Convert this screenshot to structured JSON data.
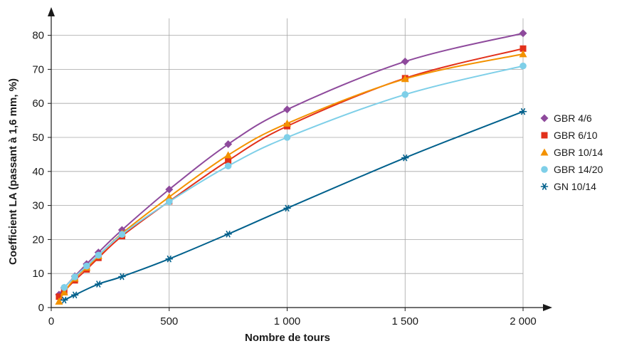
{
  "chart_data": {
    "type": "line",
    "title": "",
    "xlabel": "Nombre de tours",
    "ylabel": "Coefficient LA (passant à 1,6 mm, %)",
    "xlim": [
      0,
      2000
    ],
    "ylim": [
      0,
      85
    ],
    "x_ticks": [
      0,
      500,
      1000,
      1500,
      2000
    ],
    "x_tick_labels": [
      "0",
      "500",
      "1 000",
      "1 500",
      "2 000"
    ],
    "y_ticks": [
      0,
      10,
      20,
      30,
      40,
      50,
      60,
      70,
      80
    ],
    "y_tick_labels": [
      "0",
      "10",
      "20",
      "30",
      "40",
      "50",
      "60",
      "70",
      "80"
    ],
    "grid": true,
    "legend_position": "right",
    "series": [
      {
        "name": "GBR 4/6",
        "color": "#8e4a9c",
        "marker": "diamond",
        "x": [
          33,
          55,
          100,
          150,
          200,
          300,
          500,
          750,
          1000,
          1500,
          2000
        ],
        "y": [
          3.8,
          5.8,
          9.2,
          12.8,
          16.2,
          22.8,
          34.7,
          48.0,
          58.2,
          72.3,
          80.6
        ]
      },
      {
        "name": "GBR 6/10",
        "color": "#e2301a",
        "marker": "square",
        "x": [
          33,
          55,
          100,
          150,
          200,
          300,
          500,
          750,
          1000,
          1500,
          2000
        ],
        "y": [
          3.2,
          4.8,
          8.0,
          11.2,
          14.6,
          21.0,
          31.2,
          43.2,
          53.3,
          67.4,
          76.1
        ]
      },
      {
        "name": "GBR 10/14",
        "color": "#f39200",
        "marker": "triangle",
        "x": [
          33,
          55,
          100,
          150,
          200,
          300,
          500,
          750,
          1000,
          1500,
          2000
        ],
        "y": [
          1.8,
          4.5,
          8.6,
          11.8,
          15.2,
          21.8,
          32.5,
          44.8,
          54.1,
          67.2,
          74.5
        ]
      },
      {
        "name": "GBR 14/20",
        "color": "#7ecfe8",
        "marker": "circle",
        "x": [
          55,
          100,
          150,
          200,
          300,
          500,
          750,
          1000,
          1500,
          2000
        ],
        "y": [
          5.9,
          9.0,
          12.2,
          15.4,
          21.5,
          31.1,
          41.6,
          50.0,
          62.6,
          71.0
        ]
      },
      {
        "name": "GN 10/14",
        "color": "#00608c",
        "marker": "asterisk",
        "x": [
          55,
          100,
          200,
          300,
          500,
          750,
          1000,
          1500,
          2000
        ],
        "y": [
          2.2,
          3.7,
          6.9,
          9.1,
          14.3,
          21.6,
          29.2,
          44.0,
          57.6
        ]
      }
    ]
  }
}
